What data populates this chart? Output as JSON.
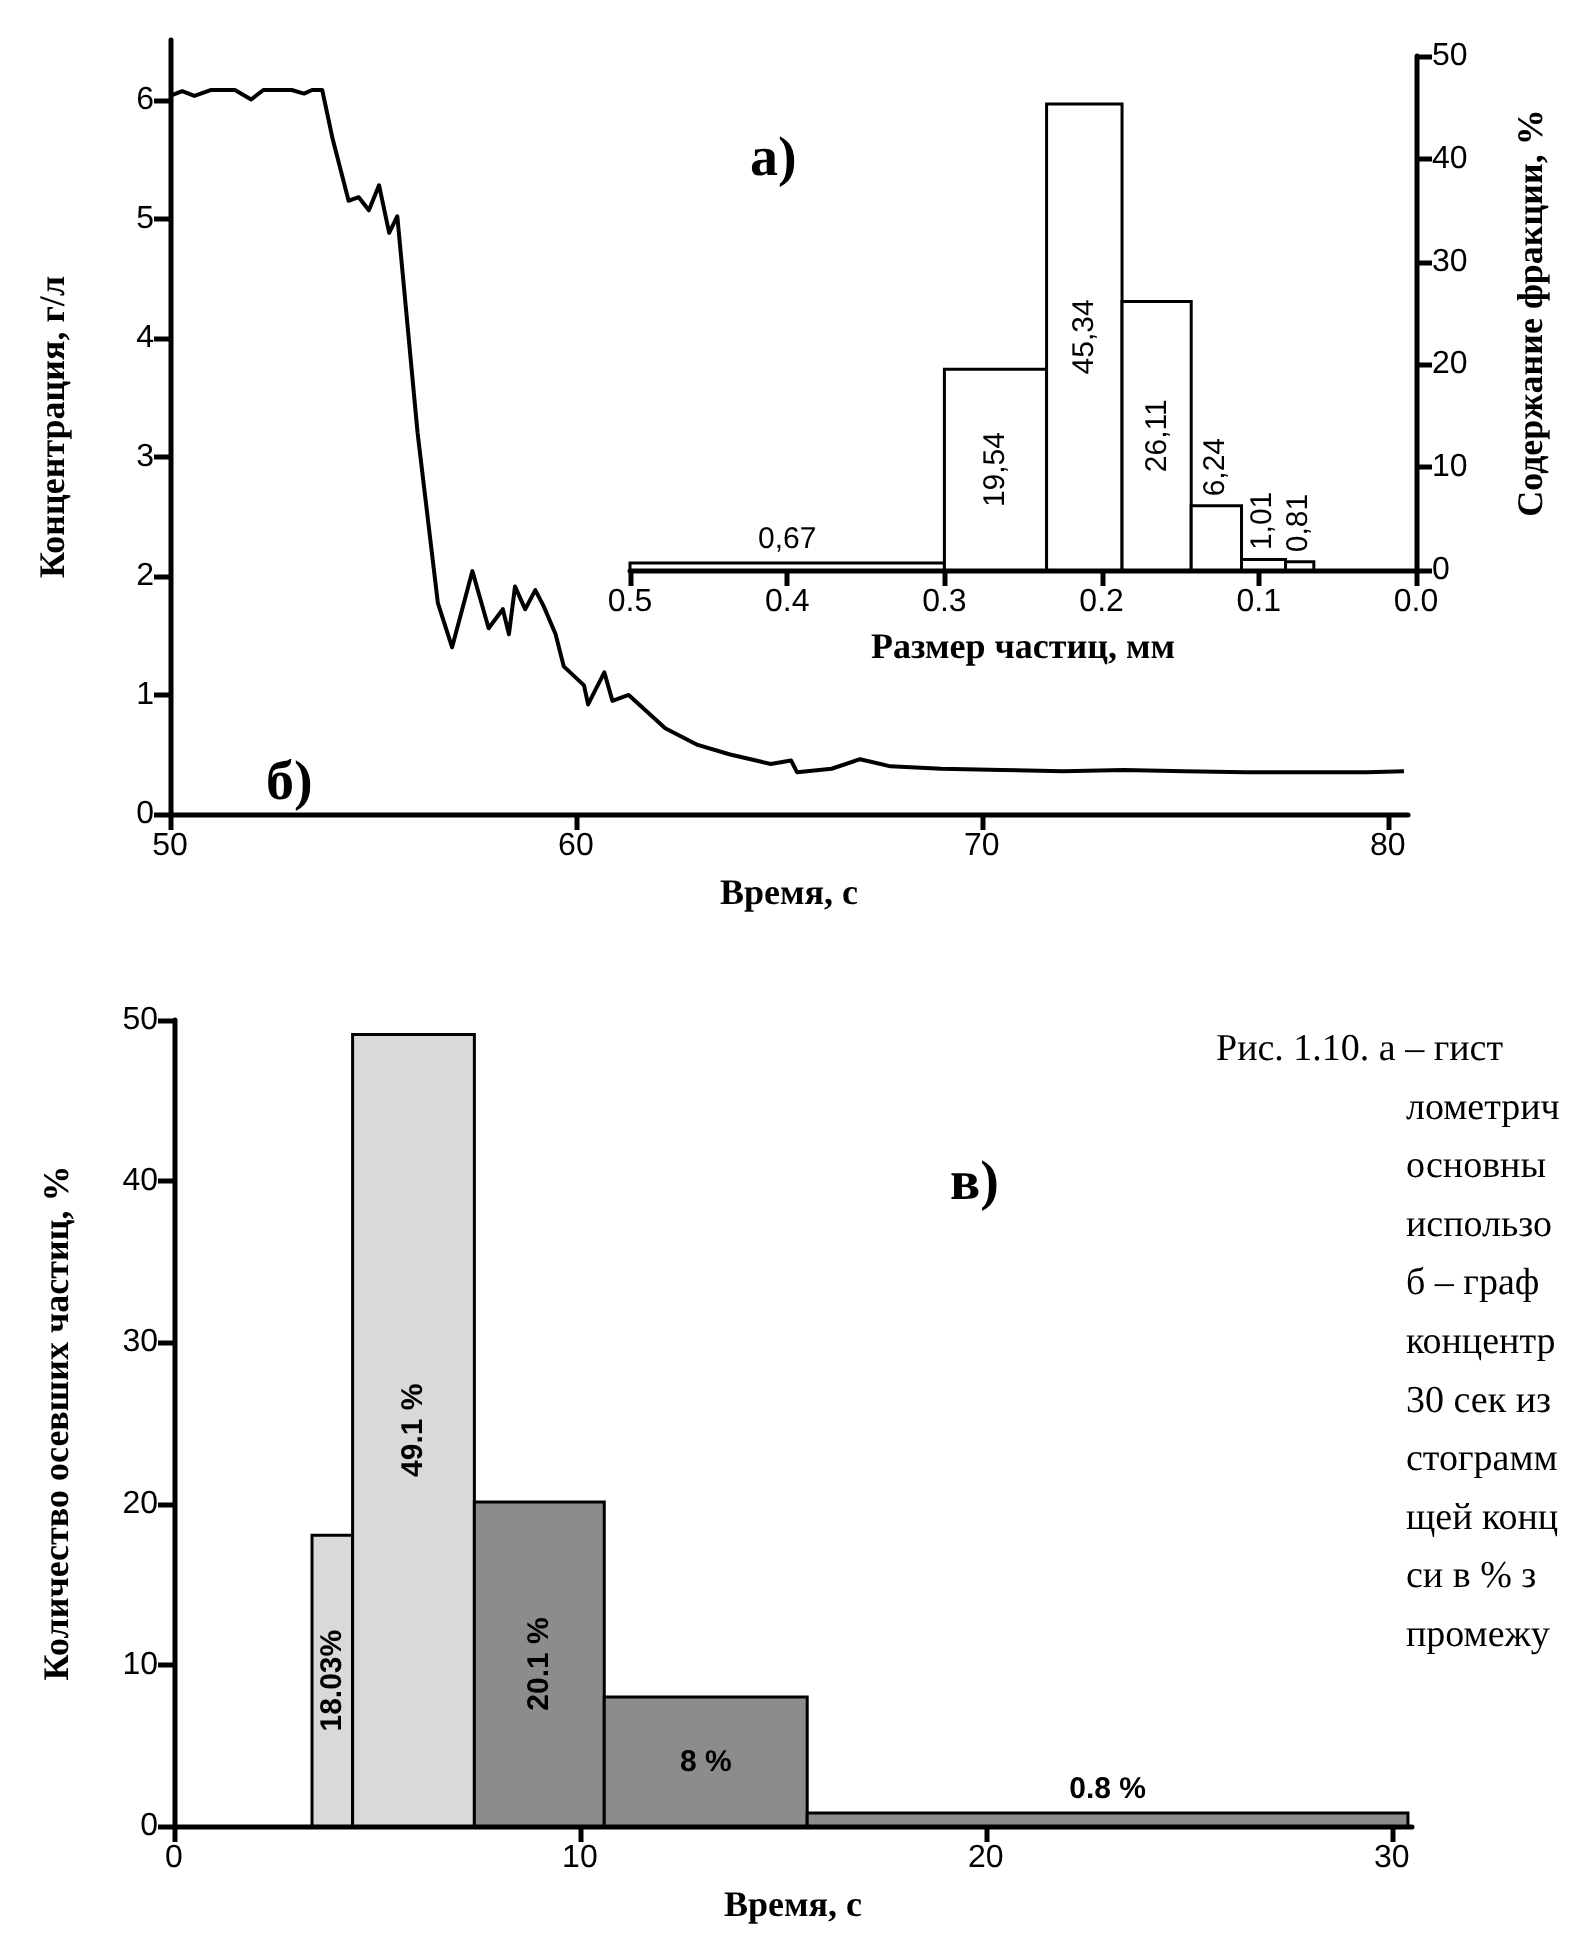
{
  "chart_data": [
    {
      "type": "histogram",
      "title": "а)",
      "xlabel": "Размер частиц, мм",
      "y2label": "Содержание фракции, %",
      "bins": [
        0.5,
        0.3,
        0.235,
        0.187,
        0.143,
        0.111,
        0.083,
        0.065
      ],
      "series": [
        {
          "values": [
            0.67,
            19.54,
            45.34,
            26.11,
            6.24,
            1.01,
            0.81
          ],
          "value_labels": [
            "0,67",
            "19,54",
            "45,34",
            "26,11",
            "6,24",
            "1,01",
            "0,81"
          ],
          "axis": "y2",
          "color": "#ffffff"
        }
      ],
      "xlim": [
        0.5,
        0
      ],
      "xticks": [
        0.5,
        0.4,
        0.3,
        0.2,
        0.1,
        {
          "value": 0,
          "label": "0.0"
        }
      ],
      "y2lim": [
        0,
        50
      ],
      "y2ticks": [
        0,
        10,
        20,
        30,
        40,
        50
      ]
    },
    {
      "type": "line",
      "title": "б)",
      "xlabel": "Время, с",
      "ylabel": "Концентрация, г/л",
      "color": "#000000",
      "marker": "none",
      "line_style": "solid",
      "x": [
        50,
        50.3,
        50.6,
        51,
        51.6,
        52,
        52.3,
        53,
        53.3,
        53.5,
        53.75,
        54,
        54.4,
        54.65,
        54.9,
        55.15,
        55.4,
        55.6,
        56.1,
        56.6,
        56.95,
        57.45,
        57.85,
        58.2,
        58.35,
        58.5,
        58.75,
        59,
        59.2,
        59.5,
        59.7,
        60.2,
        60.3,
        60.7,
        60.9,
        61.3,
        62.2,
        63,
        63.8,
        64.8,
        65.3,
        65.45,
        66.3,
        67,
        67.75,
        69,
        70.5,
        72,
        73.5,
        75,
        76.5,
        78,
        79.5,
        80.4
      ],
      "values": [
        6.03,
        6.07,
        6.03,
        6.08,
        6.08,
        6,
        6.08,
        6.08,
        6.05,
        6.08,
        6.08,
        5.68,
        5.15,
        5.18,
        5.07,
        5.28,
        4.88,
        5.02,
        3.2,
        1.77,
        1.4,
        2.04,
        1.56,
        1.72,
        1.51,
        1.91,
        1.72,
        1.88,
        1.75,
        1.51,
        1.24,
        1.08,
        0.92,
        1.19,
        0.95,
        1,
        0.72,
        0.58,
        0.5,
        0.42,
        0.45,
        0.35,
        0.38,
        0.46,
        0.4,
        0.38,
        0.37,
        0.36,
        0.37,
        0.36,
        0.35,
        0.35,
        0.35,
        0.36
      ],
      "xlim": [
        50,
        80.5
      ],
      "xticks": [
        50,
        60,
        70,
        80
      ],
      "ylim": [
        0,
        6.5
      ],
      "yticks": [
        0,
        1,
        2,
        3,
        4,
        5,
        6
      ]
    },
    {
      "type": "histogram",
      "title": "в)",
      "xlabel": "Время, с",
      "ylabel": "Количество осевших частиц, %",
      "bins": [
        3.4,
        4.4,
        7.4,
        10.6,
        15.6,
        30.4
      ],
      "values": [
        18.03,
        49.1,
        20.1,
        8,
        0.8
      ],
      "value_labels": [
        "18.03%",
        "49.1 %",
        "20.1 %",
        "8 %",
        "0.8 %"
      ],
      "colors": [
        "#d9d9d9",
        "#d9d9d9",
        "#8c8c8c",
        "#8c8c8c",
        "#8c8c8c"
      ],
      "xlim": [
        0,
        30.5
      ],
      "xticks": [
        0,
        10,
        20,
        30
      ],
      "ylim": [
        0,
        50
      ],
      "yticks": [
        0,
        10,
        20,
        30,
        40,
        50
      ],
      "annotations": [
        "Рис. 1.10. а – гист",
        "лометрич",
        "основны",
        "использо",
        "б – граф",
        "концентр",
        "30 сек из",
        "стограмм",
        "щей конц",
        "си в % з",
        "промежу"
      ]
    }
  ]
}
